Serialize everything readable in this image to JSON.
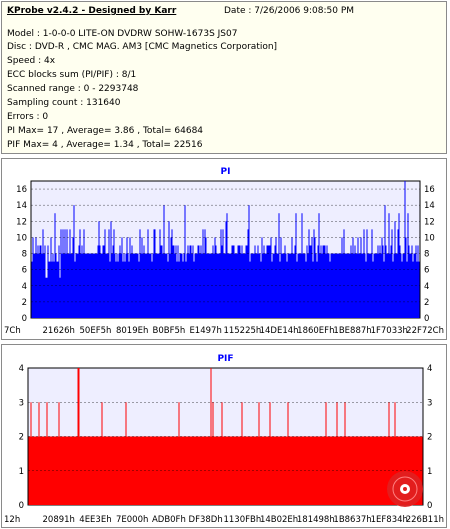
{
  "header": {
    "title": "KProbe v2.4.2 - Designed by Karr",
    "date": "Date : 7/26/2006 9:08:50 PM"
  },
  "info": {
    "model": "Model : 1-0-0-0 LITE-ON DVDRW SOHW-1673S JS07",
    "disc": "Disc : DVD-R , CMC MAG. AM3 [CMC Magnetics Corporation]",
    "speed": "Speed : 4x",
    "ecc": "ECC blocks sum (PI/PIF) : 8/1",
    "range": "Scanned range : 0 - 2293748",
    "sampling": "Sampling count : 131640",
    "errors": "Errors : 0",
    "pi_stats": "PI Max= 17 , Average= 3.86 , Total= 64684",
    "pif_stats": "PIF Max= 4 , Average= 1.34 , Total= 22516"
  },
  "colors": {
    "pi_bar": "#0000ff",
    "pif_bar": "#ff0000",
    "plot_bg": "#eeeeff",
    "title": "#0000ff",
    "logo": "#e02020"
  },
  "chart_data": [
    {
      "type": "bar",
      "title": "PI",
      "ylim": [
        0,
        17
      ],
      "y_ticks": [
        "0",
        "2",
        "4",
        "6",
        "8",
        "10",
        "12",
        "14",
        "16"
      ],
      "x_ticks": [
        "7Ch",
        "21626h",
        "50EF5h",
        "8019Eh",
        "B0BF5h",
        "E1497h",
        "115225h",
        "14DE14h",
        "1860EFh",
        "1BE887h",
        "1F7033h",
        "22F72Ch"
      ],
      "baseline": 8,
      "max": 17,
      "average": 3.86,
      "grid": true
    },
    {
      "type": "bar",
      "title": "PIF",
      "ylim": [
        0,
        4
      ],
      "y_ticks": [
        "0",
        "1",
        "2",
        "3",
        "4"
      ],
      "x_ticks": [
        "12h",
        "20891h",
        "4EE3Eh",
        "7E000h",
        "ADB0Fh",
        "DF38Dh",
        "1130FBh",
        "14B02Eh",
        "181498h",
        "1B8637h",
        "1EF834h",
        "226B11h"
      ],
      "baseline": 2,
      "max": 4,
      "average": 1.34,
      "grid": true
    }
  ]
}
